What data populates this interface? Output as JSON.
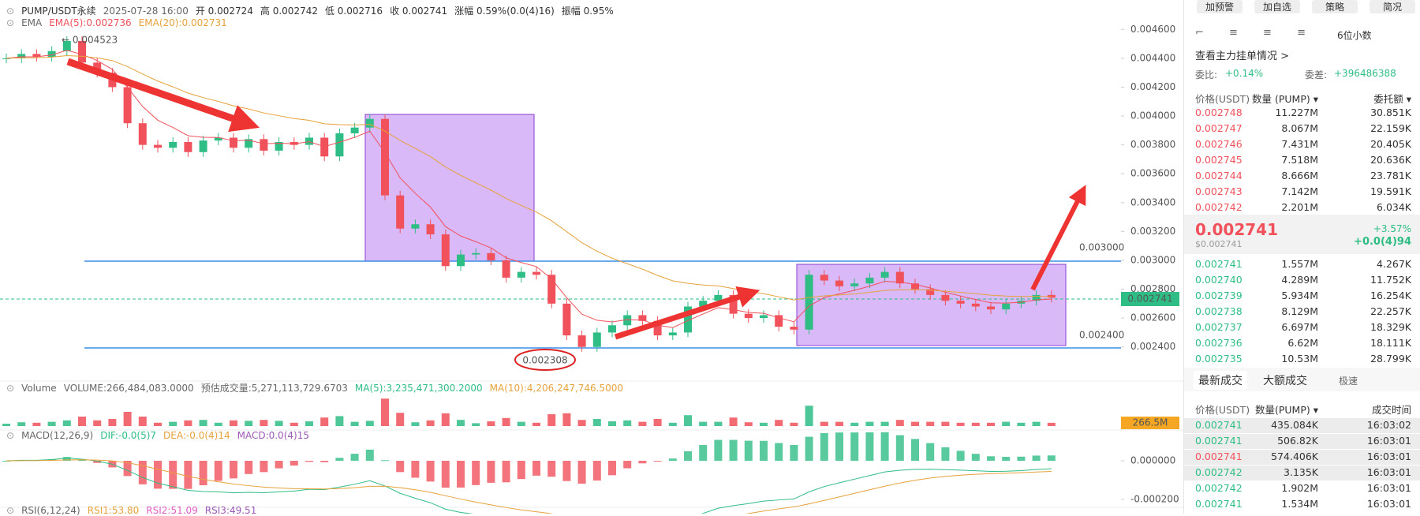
{
  "header": {
    "items": [
      "PUMP/USDT永续",
      "2025-07-28 16:00",
      "开 0.002724",
      "高 0.002742",
      "低 0.002716",
      "收 0.002741",
      "涨幅 0.59%(0.0(4)16)",
      "振幅 0.95%"
    ],
    "ema": [
      "EMA",
      "EMA(5):0.002736",
      "EMA(20):0.002731"
    ]
  },
  "chart": {
    "type": "candlestick",
    "ylim": [
      0.0023,
      0.0047
    ],
    "yticks": [
      {
        "value": 0.0046,
        "label": "0.004600"
      },
      {
        "value": 0.0044,
        "label": "0.004400"
      },
      {
        "value": 0.0042,
        "label": "0.004200"
      },
      {
        "value": 0.004,
        "label": "0.004000"
      },
      {
        "value": 0.0038,
        "label": "0.003800"
      },
      {
        "value": 0.0036,
        "label": "0.003600"
      },
      {
        "value": 0.0034,
        "label": "0.003400"
      },
      {
        "value": 0.0032,
        "label": "0.003200"
      },
      {
        "value": 0.003,
        "label": "0.003000"
      },
      {
        "value": 0.0028,
        "label": "0.002800"
      },
      {
        "value": 0.0026,
        "label": "0.002600"
      },
      {
        "value": 0.0024,
        "label": "0.002400"
      }
    ],
    "closes": [
      0.0044,
      0.00443,
      0.00441,
      0.00445,
      0.00452,
      0.00437,
      0.0043,
      0.0042,
      0.00395,
      0.0038,
      0.00378,
      0.00382,
      0.00375,
      0.00383,
      0.00385,
      0.00378,
      0.00384,
      0.00376,
      0.00382,
      0.0038,
      0.00385,
      0.00372,
      0.00388,
      0.00392,
      0.00398,
      0.00345,
      0.00322,
      0.00325,
      0.00318,
      0.00296,
      0.00304,
      0.00305,
      0.003,
      0.00288,
      0.00292,
      0.0029,
      0.0027,
      0.00248,
      0.0024,
      0.0025,
      0.00255,
      0.00262,
      0.00258,
      0.00248,
      0.0025,
      0.00268,
      0.00272,
      0.00276,
      0.00263,
      0.0026,
      0.00262,
      0.00254,
      0.00252,
      0.0029,
      0.00286,
      0.00282,
      0.00284,
      0.00288,
      0.00292,
      0.00284,
      0.0028,
      0.00276,
      0.00272,
      0.0027,
      0.00268,
      0.00266,
      0.0027,
      0.00272,
      0.00276,
      0.002741
    ],
    "up_color": "#2ebd85",
    "down_color": "#f0515b",
    "high_label": "← 0.004523",
    "low_label": "0.002308",
    "level_high": "0.003000",
    "level_low": "0.002400",
    "last_label": "0.002741"
  },
  "volume": {
    "items": [
      "Volume",
      "VOLUME:266,484,083.0000",
      "预估成交量:5,271,113,729.6703",
      "MA(5):3,235,471,300.2000",
      "MA(10):4,206,247,746.5000"
    ],
    "last_label": "266.5M"
  },
  "macd": {
    "items": [
      "MACD(12,26,9)",
      "DIF:-0.0(5)7",
      "DEA:-0.0(4)14",
      "MACD:0.0(4)15"
    ],
    "yticks": [
      {
        "value": 0,
        "label": "0.000000"
      },
      {
        "value": -0.0002,
        "label": "-0.000200"
      }
    ]
  },
  "rsi": {
    "items": [
      "RSI(6,12,24)",
      "RSI1:53.80",
      "RSI2:51.09",
      "RSI3:49.51"
    ]
  },
  "panel": {
    "buttons": [
      "加预警",
      "加自选",
      "策略",
      "简况"
    ],
    "decimals": "6位小数",
    "depth_link": "查看主力挂单情况 >",
    "ratio_label": "委比:",
    "ratio": "+0.14%",
    "diff_label": "委差:",
    "diff": "+396486388",
    "book_headers": [
      "价格(USDT)",
      "数量 (PUMP) ▾",
      "委托额 ▾"
    ],
    "asks": [
      [
        "0.002748",
        "11.227M",
        "30.851K"
      ],
      [
        "0.002747",
        "8.067M",
        "22.159K"
      ],
      [
        "0.002746",
        "7.431M",
        "20.405K"
      ],
      [
        "0.002745",
        "7.518M",
        "20.636K"
      ],
      [
        "0.002744",
        "8.666M",
        "23.781K"
      ],
      [
        "0.002743",
        "7.142M",
        "19.591K"
      ],
      [
        "0.002742",
        "2.201M",
        "6.034K"
      ]
    ],
    "mid_price": "0.002741",
    "mid_usd": "$0.002741",
    "mid_pct": "+3.57%",
    "mid_change": "+0.0(4)94",
    "bids": [
      [
        "0.002741",
        "1.557M",
        "4.267K"
      ],
      [
        "0.002740",
        "4.289M",
        "11.752K"
      ],
      [
        "0.002739",
        "5.934M",
        "16.254K"
      ],
      [
        "0.002738",
        "8.129M",
        "22.257K"
      ],
      [
        "0.002737",
        "6.697M",
        "18.329K"
      ],
      [
        "0.002736",
        "6.62M",
        "18.111K"
      ],
      [
        "0.002735",
        "10.53M",
        "28.799K"
      ]
    ],
    "tabs": [
      "最新成交",
      "大额成交"
    ],
    "fast": "极速",
    "trade_headers": [
      "价格(USDT)",
      "数量(PUMP) ▾",
      "成交时间"
    ],
    "trades": [
      {
        "cells": [
          "0.002741",
          "435.084K",
          "16:03:02"
        ],
        "color": "#2ebd85"
      },
      {
        "cells": [
          "0.002741",
          "506.82K",
          "16:03:01"
        ],
        "color": "#2ebd85"
      },
      {
        "cells": [
          "0.002741",
          "574.406K",
          "16:03:01"
        ],
        "color": "#f0515b"
      },
      {
        "cells": [
          "0.002742",
          "3.135K",
          "16:03:01"
        ],
        "color": "#2ebd85"
      },
      {
        "cells": [
          "0.002742",
          "1.902M",
          "16:03:01"
        ],
        "color": "#2ebd85"
      },
      {
        "cells": [
          "0.002741",
          "1.534M",
          "16:03:01"
        ],
        "color": "#2ebd85"
      }
    ]
  }
}
